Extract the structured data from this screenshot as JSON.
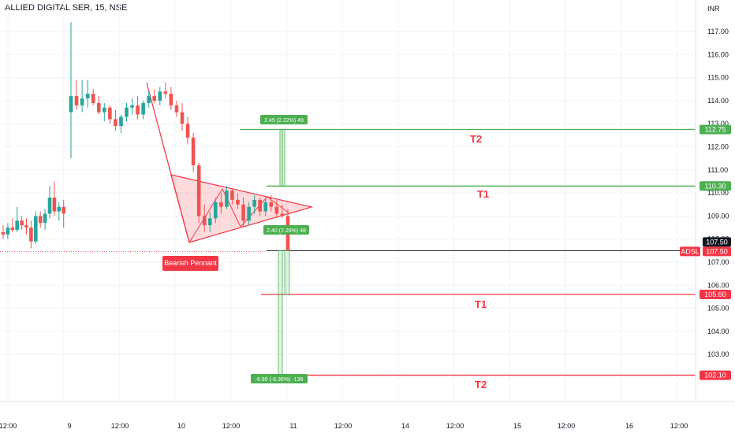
{
  "header": {
    "title": "ALLIED DIGITAL SER, 15, NSE"
  },
  "axis": {
    "currency": "INR",
    "price_ticks": [
      117,
      116,
      115,
      114,
      113,
      112,
      111,
      110,
      109,
      108,
      107,
      106,
      105,
      104,
      103
    ],
    "price_tick_labels": [
      "117.00",
      "116.00",
      "115.00",
      "114.00",
      "113.00",
      "112.00",
      "111.00",
      "110.00",
      "109.00",
      "108.00",
      "107.00",
      "106.00",
      "105.00",
      "104.00",
      "103.00"
    ],
    "time_labels": [
      "12:00",
      "9",
      "12:00",
      "10",
      "12:00",
      "11",
      "12:00",
      "14",
      "12:00",
      "15",
      "12:00",
      "16",
      "12:00"
    ]
  },
  "price_boxes": {
    "t2_up": "112.75",
    "t1_up": "110.30",
    "current_black": "107.50",
    "current_red": "107.50",
    "symbol_badge": "ADSL",
    "t1_down": "105.60",
    "t2_down": "102.10"
  },
  "targets": {
    "t2_up": "T2",
    "t1_up": "T1",
    "t1_down": "T1",
    "t2_down": "T2"
  },
  "measures": {
    "up": "2.45 (2.22%) 49",
    "mid": "2.40 (2.26%) 48",
    "down": "-6.90 (-6.36%) -138"
  },
  "pattern": {
    "label": "Bearish Pennant"
  },
  "colors": {
    "up": "#26a69a",
    "down": "#ef5350",
    "target_up": "#4caf50",
    "target_down": "#f23645",
    "text": "#131722"
  },
  "chart_data": {
    "type": "candlestick",
    "title": "ALLIED DIGITAL SER, 15, NSE",
    "ylabel": "INR",
    "ylim": [
      102.0,
      117.6
    ],
    "x": [
      "12:00",
      "9",
      "12:00",
      "10",
      "12:00",
      "11",
      "12:00",
      "14",
      "12:00",
      "15",
      "12:00",
      "16",
      "12:00"
    ],
    "candles": [
      {
        "o": 108.3,
        "h": 108.6,
        "l": 108.0,
        "c": 108.2
      },
      {
        "o": 108.2,
        "h": 108.7,
        "l": 108.0,
        "c": 108.5
      },
      {
        "o": 108.5,
        "h": 108.9,
        "l": 108.3,
        "c": 108.4
      },
      {
        "o": 108.4,
        "h": 109.4,
        "l": 108.3,
        "c": 108.8
      },
      {
        "o": 108.8,
        "h": 109.0,
        "l": 108.4,
        "c": 108.6
      },
      {
        "o": 108.6,
        "h": 108.9,
        "l": 108.2,
        "c": 108.5
      },
      {
        "o": 108.5,
        "h": 108.8,
        "l": 107.6,
        "c": 107.9
      },
      {
        "o": 107.9,
        "h": 109.2,
        "l": 107.8,
        "c": 109.0
      },
      {
        "o": 109.0,
        "h": 109.2,
        "l": 108.5,
        "c": 108.7
      },
      {
        "o": 108.7,
        "h": 109.3,
        "l": 108.4,
        "c": 109.1
      },
      {
        "o": 109.1,
        "h": 110.3,
        "l": 108.9,
        "c": 109.8
      },
      {
        "o": 109.8,
        "h": 110.5,
        "l": 109.0,
        "c": 109.2
      },
      {
        "o": 109.2,
        "h": 109.6,
        "l": 108.8,
        "c": 109.4
      },
      {
        "o": 109.4,
        "h": 109.7,
        "l": 108.5,
        "c": 109.1
      },
      {
        "o": 113.5,
        "h": 117.4,
        "l": 111.5,
        "c": 114.2
      },
      {
        "o": 114.2,
        "h": 114.9,
        "l": 113.6,
        "c": 113.8
      },
      {
        "o": 113.8,
        "h": 114.9,
        "l": 113.5,
        "c": 114.1
      },
      {
        "o": 114.1,
        "h": 114.9,
        "l": 113.7,
        "c": 114.3
      },
      {
        "o": 114.3,
        "h": 114.5,
        "l": 113.8,
        "c": 113.9
      },
      {
        "o": 113.9,
        "h": 114.2,
        "l": 113.4,
        "c": 113.5
      },
      {
        "o": 113.5,
        "h": 113.9,
        "l": 113.1,
        "c": 113.7
      },
      {
        "o": 113.7,
        "h": 113.8,
        "l": 113.0,
        "c": 113.2
      },
      {
        "o": 113.2,
        "h": 113.6,
        "l": 112.7,
        "c": 112.9
      },
      {
        "o": 112.9,
        "h": 113.4,
        "l": 112.6,
        "c": 113.3
      },
      {
        "o": 113.3,
        "h": 113.9,
        "l": 113.1,
        "c": 113.7
      },
      {
        "o": 113.7,
        "h": 114.1,
        "l": 113.4,
        "c": 113.8
      },
      {
        "o": 113.8,
        "h": 114.2,
        "l": 113.2,
        "c": 113.4
      },
      {
        "o": 113.4,
        "h": 114.0,
        "l": 113.2,
        "c": 113.9
      },
      {
        "o": 113.9,
        "h": 114.4,
        "l": 113.7,
        "c": 114.2
      },
      {
        "o": 114.2,
        "h": 114.5,
        "l": 113.9,
        "c": 114.0
      },
      {
        "o": 114.0,
        "h": 114.6,
        "l": 113.8,
        "c": 114.4
      },
      {
        "o": 114.4,
        "h": 114.8,
        "l": 114.1,
        "c": 114.3
      },
      {
        "o": 114.3,
        "h": 114.6,
        "l": 113.6,
        "c": 113.8
      },
      {
        "o": 113.8,
        "h": 114.0,
        "l": 113.3,
        "c": 113.5
      },
      {
        "o": 113.5,
        "h": 113.9,
        "l": 112.7,
        "c": 113.0
      },
      {
        "o": 113.0,
        "h": 113.3,
        "l": 112.1,
        "c": 112.4
      },
      {
        "o": 112.4,
        "h": 112.6,
        "l": 110.9,
        "c": 111.2
      },
      {
        "o": 111.2,
        "h": 111.3,
        "l": 108.7,
        "c": 109.0
      },
      {
        "o": 109.0,
        "h": 109.5,
        "l": 108.3,
        "c": 108.6
      },
      {
        "o": 108.6,
        "h": 109.2,
        "l": 108.3,
        "c": 108.9
      },
      {
        "o": 108.9,
        "h": 109.8,
        "l": 108.7,
        "c": 109.6
      },
      {
        "o": 109.6,
        "h": 110.0,
        "l": 109.1,
        "c": 109.4
      },
      {
        "o": 109.4,
        "h": 110.3,
        "l": 109.3,
        "c": 110.1
      },
      {
        "o": 110.1,
        "h": 110.2,
        "l": 109.5,
        "c": 109.7
      },
      {
        "o": 109.7,
        "h": 110.0,
        "l": 109.3,
        "c": 109.5
      },
      {
        "o": 109.5,
        "h": 109.8,
        "l": 108.5,
        "c": 108.8
      },
      {
        "o": 108.8,
        "h": 109.6,
        "l": 108.6,
        "c": 109.4
      },
      {
        "o": 109.4,
        "h": 109.9,
        "l": 109.1,
        "c": 109.7
      },
      {
        "o": 109.7,
        "h": 109.8,
        "l": 109.0,
        "c": 109.2
      },
      {
        "o": 109.2,
        "h": 109.8,
        "l": 109.0,
        "c": 109.6
      },
      {
        "o": 109.6,
        "h": 109.9,
        "l": 109.2,
        "c": 109.4
      },
      {
        "o": 109.4,
        "h": 109.7,
        "l": 108.9,
        "c": 109.1
      },
      {
        "o": 109.1,
        "h": 109.5,
        "l": 108.9,
        "c": 109.0
      },
      {
        "o": 109.0,
        "h": 109.3,
        "l": 107.5,
        "c": 107.5
      }
    ],
    "lines": {
      "t2_up": 112.75,
      "t1_up": 110.3,
      "current": 107.5,
      "t1_down": 105.6,
      "t2_down": 102.1
    },
    "grid": true,
    "legend": "none"
  }
}
